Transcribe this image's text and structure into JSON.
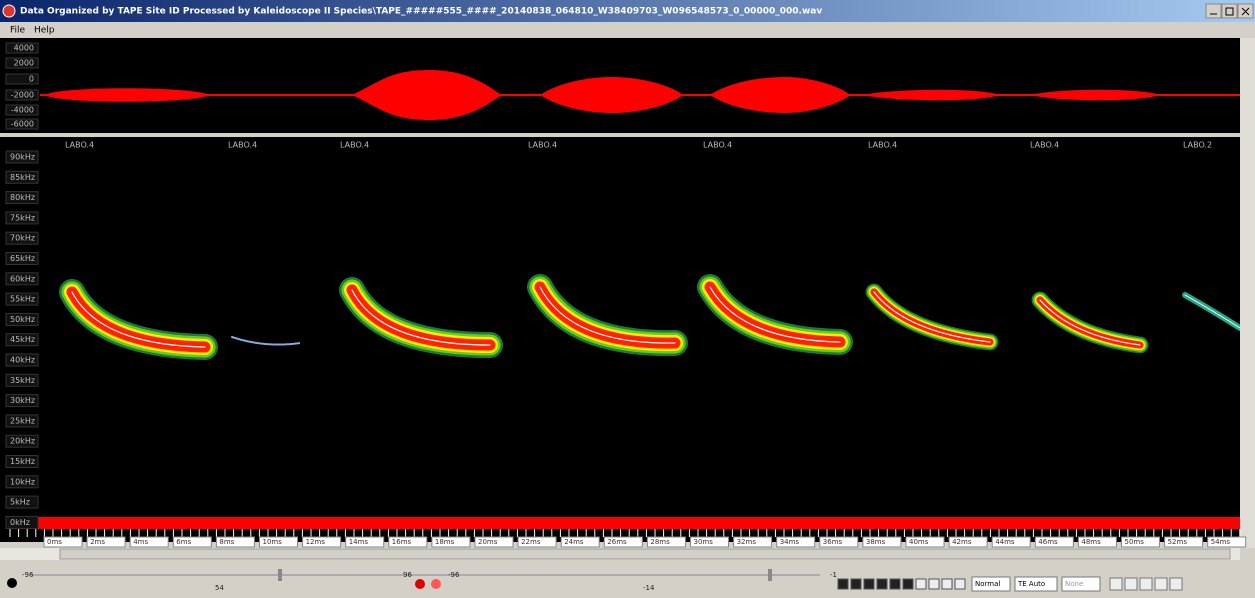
{
  "window": {
    "title": "Data Organized by TAPE Site ID Processed by Kaleidoscope II Species\\TAPE_#####555_####_20140838_064810_W38409703_W096548573_0_00000_000.wav"
  },
  "menu": [
    "File",
    "Help"
  ],
  "waveform": {
    "labels": [
      "4000",
      "2000",
      "0",
      "-2000",
      "-4000",
      "-6000"
    ]
  },
  "spectrogram": {
    "call_labels": [
      "LABO.4",
      "LABO.4",
      "LABO.4",
      "LABO.4",
      "LABO.4",
      "LABO.4",
      "LABO.4",
      "LABO.2"
    ],
    "freq_labels": [
      "90kHz",
      "85kHz",
      "80kHz",
      "75kHz",
      "70kHz",
      "65kHz",
      "60kHz",
      "55kHz",
      "50kHz",
      "45kHz",
      "40kHz",
      "35kHz",
      "30kHz",
      "25kHz",
      "20kHz",
      "15kHz",
      "10kHz",
      "5kHz",
      "0kHz"
    ],
    "time_labels": [
      "0ms",
      "2ms",
      "4ms",
      "6ms",
      "8ms",
      "10ms",
      "12ms",
      "14ms",
      "16ms",
      "18ms",
      "20ms",
      "22ms",
      "24ms",
      "26ms",
      "28ms",
      "30ms",
      "32ms",
      "34ms",
      "36ms",
      "38ms",
      "40ms",
      "42ms",
      "44ms",
      "46ms",
      "48ms",
      "50ms",
      "52ms",
      "54ms"
    ]
  },
  "controls": {
    "slider_labels": [
      "-96",
      "54",
      "96",
      "-96",
      "-14",
      "-1"
    ],
    "dropdowns": [
      "Normal",
      "TE Auto",
      "None"
    ]
  }
}
